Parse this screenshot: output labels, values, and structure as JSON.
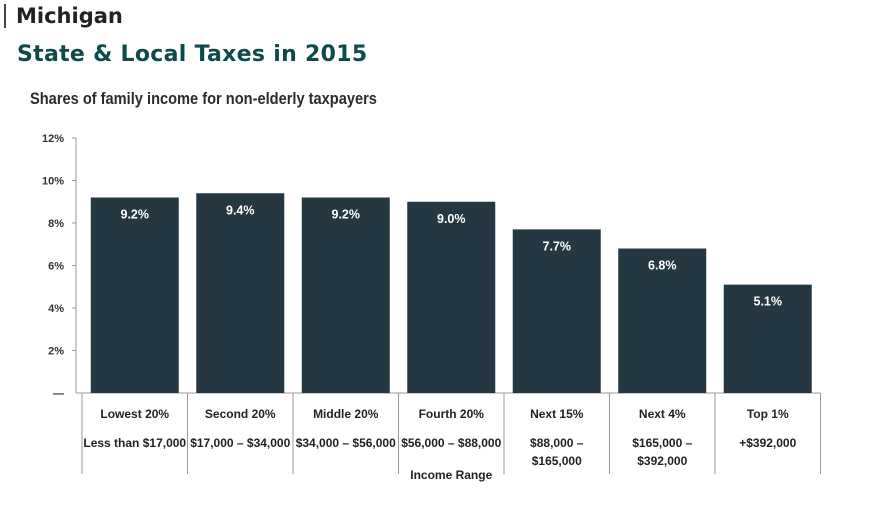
{
  "header": {
    "state": "Michigan",
    "title": "State & Local Taxes in 2015",
    "subtitle": "Shares of family income for non-elderly taxpayers"
  },
  "chart_data": {
    "type": "bar",
    "categories": [
      "Lowest 20%",
      "Second 20%",
      "Middle 20%",
      "Fourth 20%",
      "Next 15%",
      "Next 4%",
      "Top 1%"
    ],
    "income_ranges": [
      [
        "Less than $17,000"
      ],
      [
        "$17,000 – $34,000"
      ],
      [
        "$34,000 – $56,000"
      ],
      [
        "$56,000 – $88,000"
      ],
      [
        "$88,000 –",
        "$165,000"
      ],
      [
        "$165,000 –",
        "$392,000"
      ],
      [
        "+$392,000"
      ]
    ],
    "values": [
      9.2,
      9.4,
      9.2,
      9.0,
      7.7,
      6.8,
      5.1
    ],
    "value_labels": [
      "9.2%",
      "9.4%",
      "9.2%",
      "9.0%",
      "7.7%",
      "6.8%",
      "5.1%"
    ],
    "y_ticks": [
      "—",
      "2%",
      "4%",
      "6%",
      "8%",
      "10%",
      "12%"
    ],
    "y_tick_values": [
      0,
      2,
      4,
      6,
      8,
      10,
      12
    ],
    "xlabel": "Income Range",
    "ylim": [
      0,
      12
    ],
    "grid": false,
    "colors": {
      "bar": "#253841",
      "title": "#0e4a4a"
    }
  }
}
